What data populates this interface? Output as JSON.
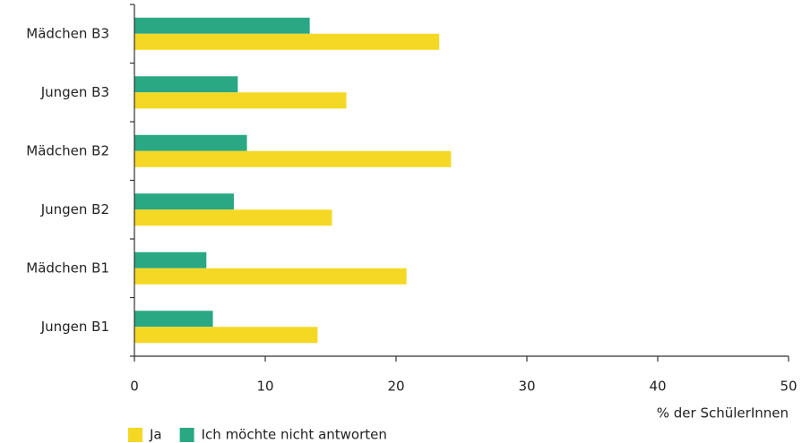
{
  "chart_data": {
    "type": "hbar",
    "categories": [
      "Mädchen B3",
      "Jungen B3",
      "Mädchen B2",
      "Jungen B2",
      "Mädchen B1",
      "Jungen B1"
    ],
    "series": [
      {
        "name": "Ja",
        "color": "#f5d824",
        "values": [
          23.3,
          16.2,
          24.2,
          15.1,
          20.8,
          14.0
        ]
      },
      {
        "name": "Ich möchte nicht antworten",
        "color": "#2aa883",
        "values": [
          13.4,
          7.9,
          8.6,
          7.6,
          5.5,
          6.0
        ]
      }
    ],
    "xlabel": "% der SchülerInnen",
    "xlim": [
      0,
      50
    ],
    "xticks": [
      0,
      10,
      20,
      30,
      40,
      50
    ]
  }
}
